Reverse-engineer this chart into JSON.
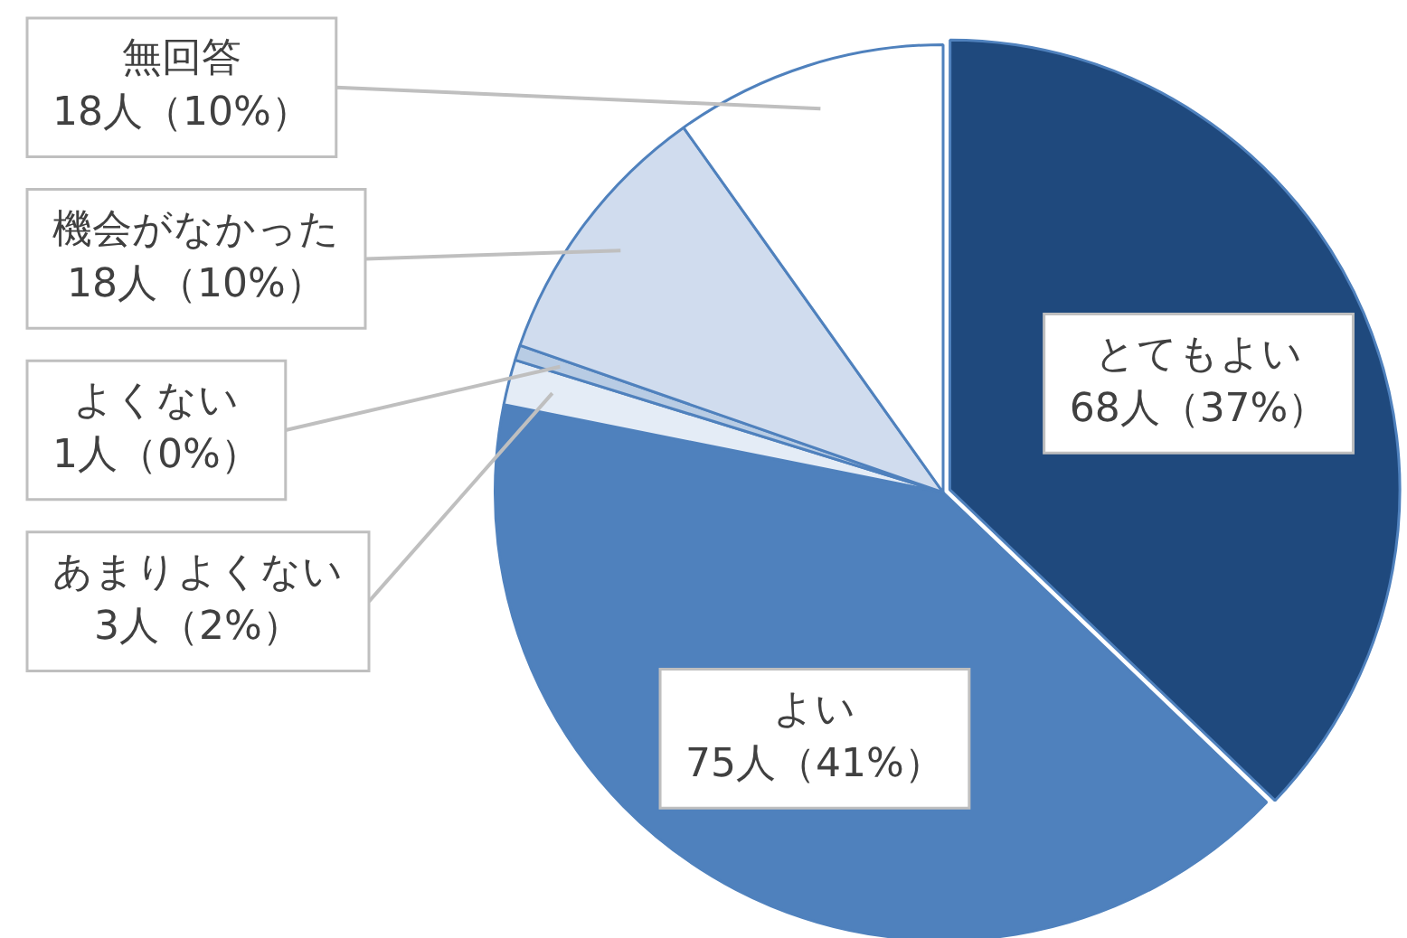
{
  "chart_data": {
    "type": "pie",
    "categories": [
      "とてもよい",
      "よい",
      "あまりよくない",
      "よくない",
      "機会がなかった",
      "無回答"
    ],
    "values": [
      68,
      75,
      3,
      1,
      18,
      18
    ],
    "colors": [
      "#1f497d",
      "#4f81bd",
      "#e4ecf6",
      "#b8cce4",
      "#d0dcee",
      "#ffffff"
    ],
    "value_labels": [
      "68人（37%）",
      "75人（41%）",
      "3人（2%）",
      "1人（0%）",
      "18人（10%）",
      "18人（10%）"
    ],
    "legend": false
  }
}
